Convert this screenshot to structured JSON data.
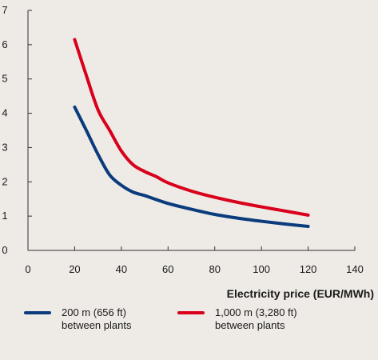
{
  "chart_data": {
    "type": "line",
    "title": "",
    "xlabel": "Electricity price (EUR/MWh)",
    "ylabel": "",
    "xlim": [
      0,
      140
    ],
    "ylim": [
      0,
      7
    ],
    "xticks": [
      0,
      20,
      40,
      60,
      80,
      100,
      120,
      140
    ],
    "yticks": [
      0,
      1,
      2,
      3,
      4,
      5,
      6,
      7
    ],
    "grid": false,
    "legend_position": "bottom",
    "series": [
      {
        "name_line1": "200 m (656 ft)",
        "name_line2": "between plants",
        "color": "#0a3c7d",
        "x": [
          20,
          25,
          30,
          35,
          40,
          45,
          50,
          55,
          60,
          70,
          80,
          90,
          100,
          110,
          120
        ],
        "y": [
          4.18,
          3.5,
          2.8,
          2.2,
          1.9,
          1.7,
          1.6,
          1.48,
          1.37,
          1.2,
          1.05,
          0.94,
          0.85,
          0.77,
          0.7
        ]
      },
      {
        "name_line1": "1,000 m (3,280 ft)",
        "name_line2": "between plants",
        "color": "#d9001b",
        "x": [
          20,
          25,
          30,
          35,
          40,
          45,
          50,
          55,
          60,
          70,
          80,
          90,
          100,
          110,
          120
        ],
        "y": [
          6.15,
          5.1,
          4.1,
          3.5,
          2.9,
          2.5,
          2.3,
          2.15,
          1.97,
          1.73,
          1.55,
          1.4,
          1.27,
          1.15,
          1.03
        ]
      }
    ]
  }
}
